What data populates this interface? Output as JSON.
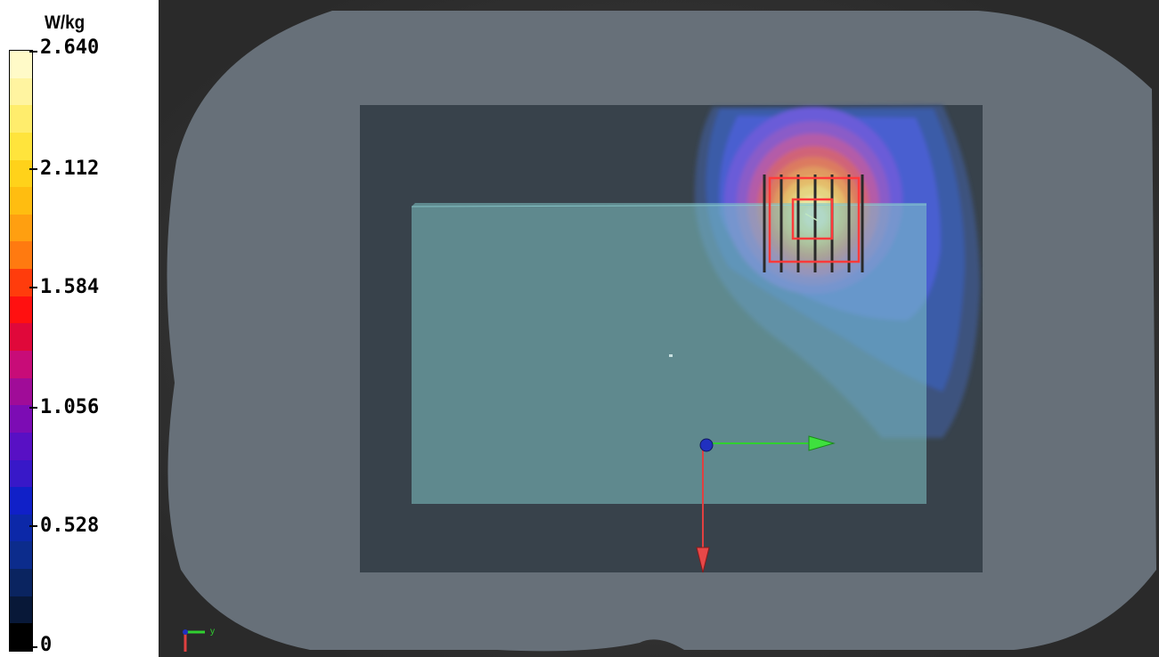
{
  "legend": {
    "unit": "W/kg",
    "ticks": [
      "2.640",
      "2.112",
      "1.584",
      "1.056",
      "0.528",
      "0"
    ],
    "colors": [
      "#fffac8",
      "#fff4a0",
      "#ffed6c",
      "#ffe43c",
      "#ffd21a",
      "#ffbd10",
      "#ff9f10",
      "#ff7a10",
      "#ff3c0c",
      "#ff1010",
      "#e0083a",
      "#c80c78",
      "#a00c98",
      "#7c0cb4",
      "#5810c4",
      "#3818c8",
      "#1020c8",
      "#0c28a8",
      "#0c2c8c",
      "#0a2460",
      "#081838",
      "#000000"
    ],
    "accent_colors": {
      "x_axis": "#ff3030",
      "y_axis": "#30d030",
      "origin": "#2020c0"
    }
  },
  "viewport": {
    "mini_axis_label": "y"
  }
}
